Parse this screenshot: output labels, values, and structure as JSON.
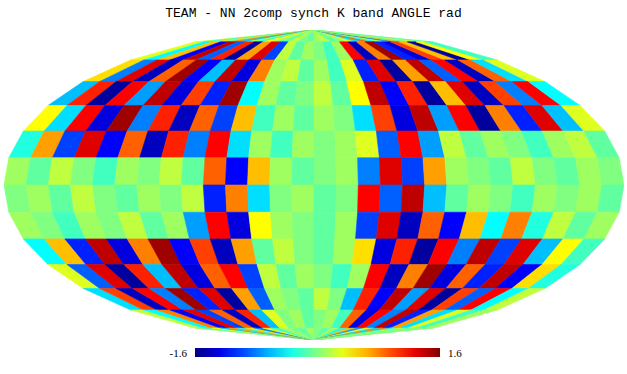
{
  "chart_data": {
    "type": "heatmap",
    "title": "TEAM - NN 2comp synch K band ANGLE rad",
    "xlim": [
      -180,
      180
    ],
    "ylim": [
      -90,
      90
    ],
    "tick_labels": false,
    "colorbar": {
      "lim": [
        -1.6,
        1.6
      ],
      "ticks": [
        -1.6,
        1.6
      ]
    },
    "cells": [
      [
        0.2,
        -0.3,
        0.5,
        -0.1,
        0.8,
        -0.6,
        0.1,
        -0.2,
        0.4,
        0.1,
        -0.1,
        0.2,
        0.0,
        -0.1,
        0.1,
        0.2,
        -0.1,
        0.0,
        0.3,
        -0.5,
        0.9,
        -0.4,
        0.2,
        -0.8,
        0.6,
        -0.2,
        0.3,
        -0.1
      ],
      [
        0.3,
        -0.4,
        0.6,
        -1.2,
        1.4,
        -0.9,
        1.1,
        -1.5,
        0.7,
        1.3,
        -1.0,
        0.2,
        -0.1,
        0.1,
        0.0,
        -0.2,
        0.1,
        1.2,
        -1.4,
        0.8,
        1.5,
        -1.1,
        -1.3,
        1.0,
        0.6,
        -1.5,
        0.4,
        -0.2
      ],
      [
        0.5,
        -0.8,
        1.3,
        -1.4,
        0.9,
        1.5,
        -1.2,
        -0.6,
        1.4,
        -1.3,
        0.8,
        0.1,
        0.2,
        -0.1,
        0.1,
        -0.2,
        0.3,
        -1.1,
        1.3,
        -1.5,
        0.7,
        1.4,
        -0.9,
        1.2,
        -1.4,
        0.9,
        -0.5,
        0.3
      ],
      [
        -0.6,
        1.1,
        -1.5,
        1.2,
        -0.7,
        1.4,
        -1.3,
        1.0,
        -1.1,
        1.5,
        -0.4,
        0.1,
        -0.1,
        0.0,
        0.2,
        -0.1,
        0.4,
        1.4,
        -1.2,
        1.1,
        -1.5,
        0.6,
        1.3,
        -1.4,
        1.0,
        -0.8,
        1.2,
        -0.4
      ],
      [
        0.4,
        -0.5,
        1.2,
        -1.3,
        1.5,
        -0.8,
        1.1,
        -1.4,
        0.9,
        -1.0,
        0.6,
        -0.2,
        0.1,
        -0.1,
        0.1,
        0.0,
        -0.5,
        1.0,
        -1.3,
        1.4,
        -0.7,
        1.2,
        -1.5,
        0.8,
        -1.1,
        1.3,
        -0.6,
        0.3
      ],
      [
        -0.3,
        0.7,
        -1.0,
        1.3,
        -1.2,
        0.9,
        -1.4,
        1.1,
        -0.8,
        1.2,
        -0.5,
        0.1,
        -0.2,
        0.1,
        0.0,
        0.1,
        0.3,
        -0.9,
        1.2,
        -0.7,
        0.2,
        -0.1,
        0.1,
        0.0,
        -0.2,
        0.1,
        0.2,
        -0.1
      ],
      [
        0.1,
        -0.1,
        0.2,
        0.0,
        -0.2,
        0.1,
        0.0,
        0.2,
        -0.1,
        0.9,
        -1.2,
        0.6,
        0.1,
        -0.1,
        0.0,
        0.1,
        -0.8,
        1.3,
        -1.0,
        0.7,
        0.1,
        0.0,
        -0.1,
        0.2,
        0.0,
        -0.1,
        0.1,
        0.0
      ],
      [
        0.0,
        0.1,
        -0.1,
        0.2,
        0.0,
        -0.1,
        0.1,
        0.0,
        0.2,
        -1.1,
        0.8,
        -0.5,
        0.0,
        0.1,
        -0.1,
        0.0,
        1.2,
        -0.9,
        1.4,
        -0.6,
        -0.1,
        0.1,
        0.0,
        -0.2,
        0.1,
        0.0,
        0.1,
        -0.1
      ],
      [
        0.1,
        0.0,
        -0.2,
        0.1,
        0.0,
        0.2,
        -0.1,
        0.1,
        -0.7,
        1.2,
        -1.3,
        0.4,
        0.1,
        0.0,
        -0.1,
        0.1,
        -1.0,
        1.3,
        -1.4,
        0.9,
        -1.2,
        0.6,
        -0.4,
        0.8,
        -0.3,
        0.2,
        -0.1,
        0.1
      ],
      [
        -0.4,
        0.6,
        -1.1,
        1.4,
        -1.3,
        0.8,
        1.5,
        -1.2,
        1.0,
        -1.4,
        0.7,
        -0.1,
        0.2,
        0.0,
        -0.1,
        0.1,
        0.5,
        -1.3,
        1.1,
        -1.5,
        1.2,
        -0.8,
        1.4,
        -1.0,
        1.3,
        -0.6,
        0.4,
        -0.2
      ],
      [
        0.3,
        -0.9,
        1.3,
        -1.5,
        1.1,
        -0.6,
        1.4,
        -1.3,
        0.9,
        1.2,
        -1.0,
        0.2,
        -0.1,
        0.1,
        0.0,
        -0.2,
        0.1,
        1.2,
        -1.4,
        0.8,
        1.5,
        -1.3,
        0.9,
        -1.1,
        1.4,
        -1.2,
        0.5,
        -0.3
      ],
      [
        -0.5,
        1.0,
        -1.4,
        1.2,
        -0.8,
        1.5,
        -1.1,
        1.3,
        -1.5,
        0.7,
        -0.9,
        0.1,
        0.0,
        -0.1,
        0.2,
        0.0,
        -0.6,
        1.1,
        -1.2,
        1.4,
        -0.7,
        1.3,
        -1.5,
        1.0,
        -0.9,
        1.2,
        -0.4,
        0.2
      ],
      [
        0.2,
        -0.4,
        0.8,
        -1.2,
        1.3,
        -1.0,
        0.9,
        -1.4,
        1.1,
        -0.6,
        0.3,
        0.0,
        0.1,
        -0.1,
        0.0,
        0.1,
        -0.2,
        0.9,
        -1.3,
        1.2,
        -0.8,
        1.4,
        -1.1,
        0.7,
        -0.5,
        0.3,
        -0.2,
        0.1
      ],
      [
        0.1,
        -0.2,
        0.4,
        -0.6,
        0.7,
        -0.3,
        0.5,
        -0.8,
        0.3,
        -0.2,
        0.1,
        0.0,
        -0.1,
        0.1,
        0.0,
        -0.1,
        0.1,
        -0.3,
        0.6,
        -0.7,
        0.4,
        -0.5,
        0.8,
        -0.4,
        0.3,
        -0.2,
        0.1,
        0.0
      ]
    ]
  }
}
